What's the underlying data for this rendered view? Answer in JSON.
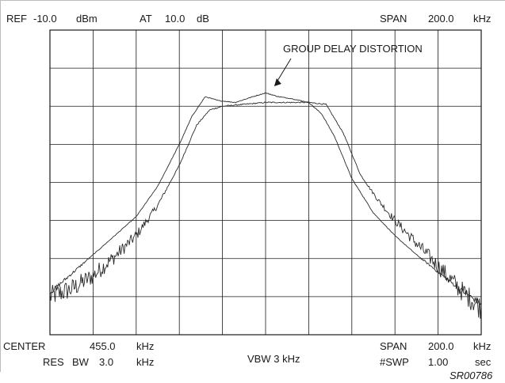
{
  "header": {
    "ref_label": "REF",
    "ref_value": "-10.0",
    "ref_unit": "dBm",
    "at_label": "AT",
    "at_value": "10.0",
    "at_unit": "dB",
    "span_label": "SPAN",
    "span_value": "200.0",
    "span_unit": "kHz"
  },
  "footer": {
    "center_label": "CENTER",
    "center_value": "455.0",
    "center_unit": "kHz",
    "res_label": "RES",
    "bw_label": "BW",
    "res_bw_value": "3.0",
    "res_bw_unit": "kHz",
    "vbw_text": "VBW 3 kHz",
    "span_label": "SPAN",
    "span_value": "200.0",
    "span_unit": "kHz",
    "swp_label": "#SWP",
    "swp_value": "1.00",
    "swp_unit": "sec",
    "figure_id": "SR00786"
  },
  "colors": {
    "trace": "#2a2a2a",
    "grid": "#1a1a1a",
    "text": "#1a1a1a"
  },
  "chart_data": {
    "type": "line",
    "x_divisions": 10,
    "y_divisions": 8,
    "xlim": [
      0,
      10
    ],
    "ylim": [
      0,
      8
    ],
    "grid": true,
    "annotation": {
      "text": "GROUP DELAY DISTORTION",
      "target": {
        "x": 5.2,
        "y": 6.4
      }
    },
    "series": [
      {
        "noisy": true,
        "points": [
          [
            0.0,
            1.0
          ],
          [
            0.5,
            1.2
          ],
          [
            1.0,
            1.55
          ],
          [
            1.5,
            2.05
          ],
          [
            2.0,
            2.6
          ],
          [
            2.5,
            3.4
          ],
          [
            3.0,
            4.45
          ],
          [
            3.4,
            5.5
          ],
          [
            3.7,
            5.9
          ],
          [
            4.0,
            6.0
          ],
          [
            4.5,
            6.05
          ],
          [
            5.0,
            6.1
          ],
          [
            5.5,
            6.1
          ],
          [
            6.0,
            6.1
          ],
          [
            6.4,
            6.05
          ],
          [
            6.8,
            5.3
          ],
          [
            7.2,
            4.2
          ],
          [
            7.6,
            3.55
          ],
          [
            8.0,
            3.0
          ],
          [
            8.5,
            2.4
          ],
          [
            9.0,
            1.8
          ],
          [
            9.5,
            1.2
          ],
          [
            10.0,
            0.7
          ]
        ]
      },
      {
        "noisy": false,
        "points": [
          [
            0.0,
            1.1
          ],
          [
            0.5,
            1.6
          ],
          [
            1.0,
            2.1
          ],
          [
            1.5,
            2.6
          ],
          [
            2.0,
            3.1
          ],
          [
            2.5,
            3.9
          ],
          [
            3.0,
            5.0
          ],
          [
            3.3,
            5.75
          ],
          [
            3.6,
            6.25
          ],
          [
            3.9,
            6.15
          ],
          [
            4.3,
            6.1
          ],
          [
            4.7,
            6.25
          ],
          [
            5.0,
            6.35
          ],
          [
            5.3,
            6.25
          ],
          [
            5.6,
            6.2
          ],
          [
            6.0,
            6.1
          ],
          [
            6.3,
            5.8
          ],
          [
            6.6,
            5.2
          ],
          [
            7.0,
            4.1
          ],
          [
            7.5,
            3.2
          ],
          [
            8.0,
            2.6
          ],
          [
            8.5,
            2.1
          ],
          [
            9.0,
            1.65
          ],
          [
            9.5,
            1.2
          ],
          [
            10.0,
            0.8
          ]
        ]
      }
    ]
  }
}
